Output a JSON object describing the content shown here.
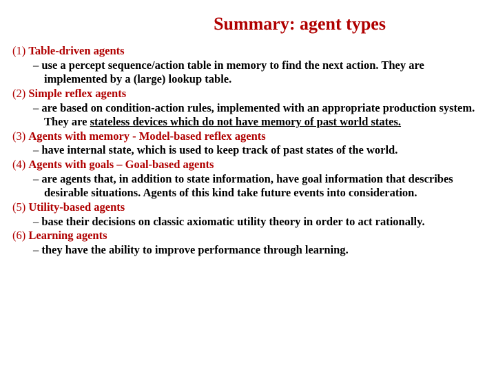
{
  "title": "Summary: agent types",
  "title_color": "#b00000",
  "title_fontsize": 26,
  "number_color": "#b00000",
  "heading_color": "#b00000",
  "body_color": "#000000",
  "body_fontsize": 16.5,
  "dash": "–",
  "items": [
    {
      "num": "(1)",
      "head": "Table-driven agents",
      "desc_pre": "use a percept sequence/action table in memory to find the next action. They are implemented by a (large) lookup table.",
      "desc_und": "",
      "desc_post": ""
    },
    {
      "num": "(2)",
      "head": "Simple reflex agents",
      "desc_pre": "are based on condition-action rules, implemented with an appropriate production system. They are ",
      "desc_und": "stateless devices which do not have memory of past world states.",
      "desc_post": ""
    },
    {
      "num": "(3)",
      "head": "Agents with memory - Model-based reflex agents",
      "desc_pre": "have internal state, which is used to keep track of past states of the world.",
      "desc_und": "",
      "desc_post": ""
    },
    {
      "num": "(4)",
      "head": "Agents with goals – Goal-based agents",
      "desc_pre": "are agents that, in addition to state information, have goal information that describes desirable situations. Agents of this kind take future events into consideration.",
      "desc_und": "",
      "desc_post": ""
    },
    {
      "num": "(5)",
      "head": "Utility-based agents",
      "desc_pre": "base their decisions on classic axiomatic utility theory in order to act rationally.",
      "desc_und": "",
      "desc_post": ""
    },
    {
      "num": "(6)",
      "head": "Learning agents",
      "desc_pre": "they have the ability to improve performance through learning.",
      "desc_und": "",
      "desc_post": ""
    }
  ]
}
